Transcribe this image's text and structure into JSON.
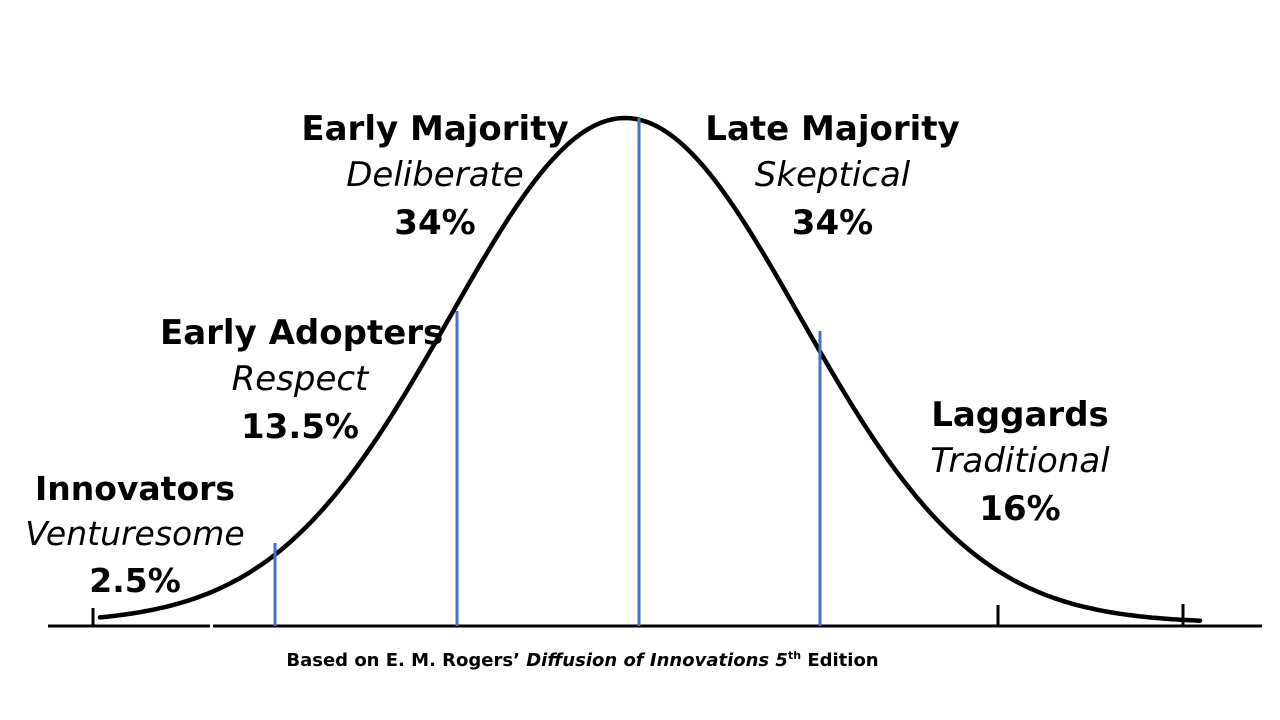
{
  "segments": [
    {
      "id": "innovators",
      "name": "Innovators",
      "trait": "Venturesome",
      "percent": "2.5%"
    },
    {
      "id": "early-adopters",
      "name": "Early Adopters",
      "trait": "Respect",
      "percent": "13.5%"
    },
    {
      "id": "early-majority",
      "name": "Early Majority",
      "trait": "Deliberate",
      "percent": "34%"
    },
    {
      "id": "late-majority",
      "name": "Late Majority",
      "trait": "Skeptical",
      "percent": "34%"
    },
    {
      "id": "laggards",
      "name": "Laggards",
      "trait": "Traditional",
      "percent": "16%"
    }
  ],
  "caption": {
    "prefix": "Based on E. M. Rogers’ ",
    "book_title": "Diffusion of Innovations",
    "edition_number": " 5",
    "edition_suffix": "th",
    "edition_word": " Edition"
  },
  "colors": {
    "curve": "#000000",
    "divider": "#4472C4",
    "axis": "#000000",
    "text": "#000000"
  }
}
